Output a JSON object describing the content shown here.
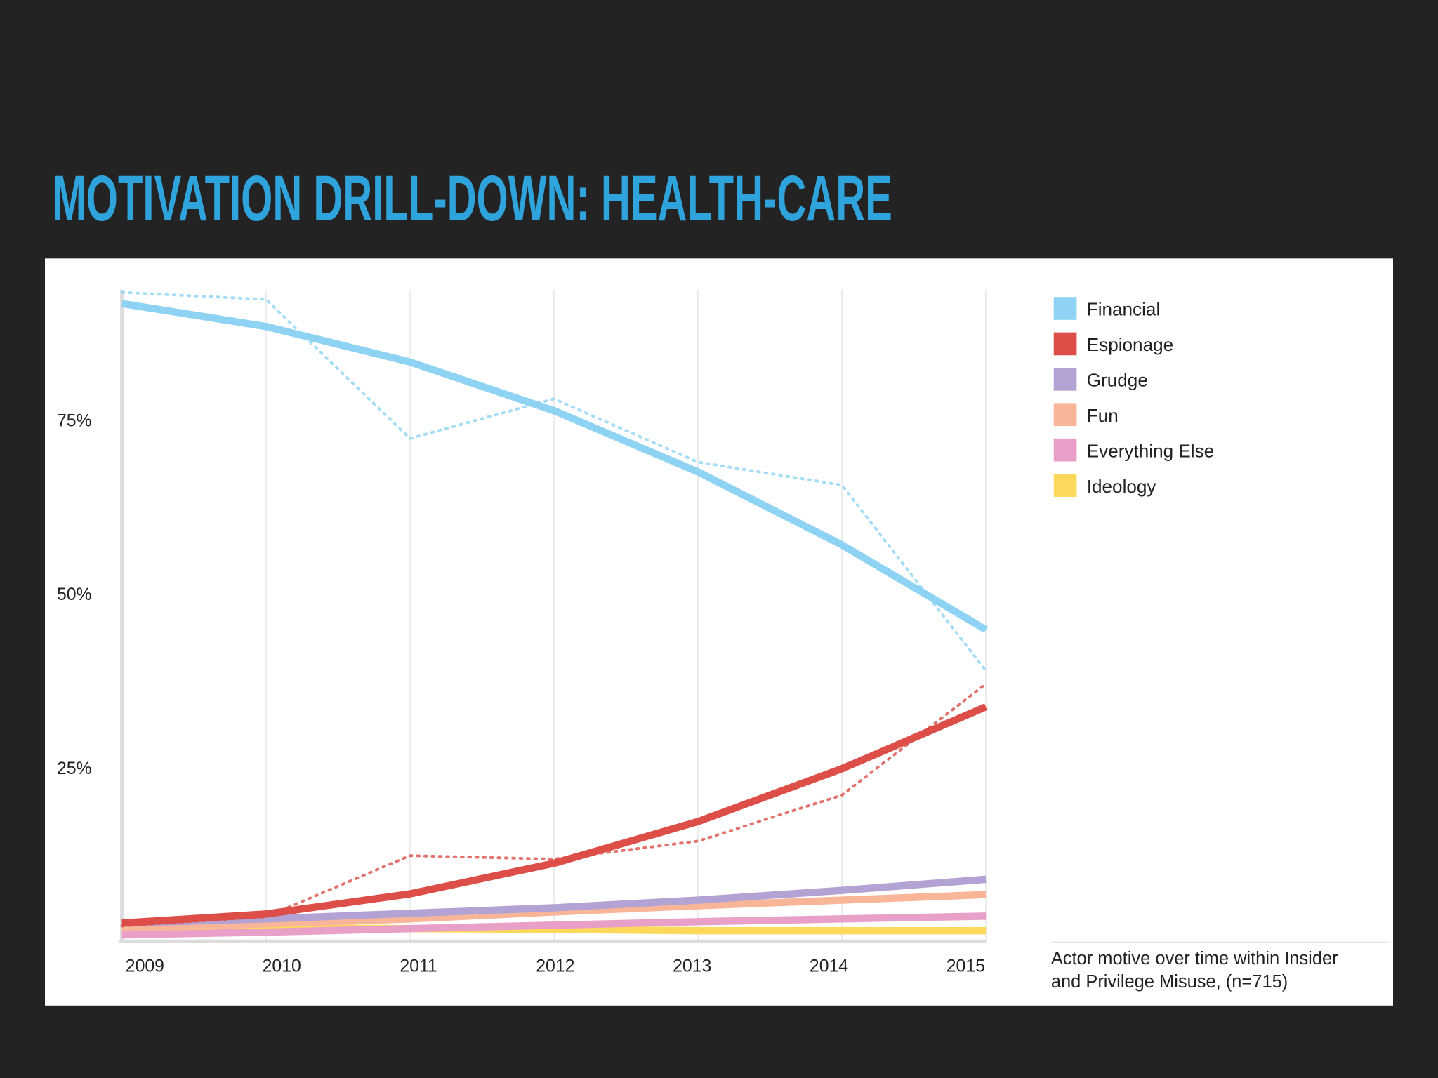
{
  "title": "MOTIVATION DRILL-DOWN: HEALTH-CARE",
  "chart_data": {
    "type": "line",
    "categories": [
      "2009",
      "2010",
      "2011",
      "2012",
      "2013",
      "2014",
      "2015"
    ],
    "ylim": [
      0,
      94
    ],
    "yticks": [
      {
        "value": 25,
        "label": "25%"
      },
      {
        "value": 50,
        "label": "50%"
      },
      {
        "value": 75,
        "label": "75%"
      }
    ],
    "grid": true,
    "legend": "right",
    "caption": [
      "Actor motive over time within Insider",
      "and Privilege Misuse, (n=715)"
    ],
    "series": [
      {
        "name": "Financial",
        "color": "#8fd3f4",
        "values": [
          92,
          88.7,
          83.6,
          76.6,
          67.8,
          57.3,
          45.1
        ],
        "raw": [
          93.6,
          92.6,
          72.6,
          78.3,
          69.2,
          65.9,
          39.2
        ]
      },
      {
        "name": "Espionage",
        "color": "#dc4e47",
        "values": [
          2.9,
          4.2,
          7.1,
          11.5,
          17.5,
          25.1,
          34
        ],
        "raw": [
          2.5,
          3.8,
          12.6,
          12.1,
          14.7,
          21.3,
          37.3
        ]
      },
      {
        "name": "Grudge",
        "color": "#b3a3d4",
        "values": [
          2.9,
          3.5,
          4.3,
          5.1,
          6.2,
          7.6,
          9.2
        ]
      },
      {
        "name": "Fun",
        "color": "#f9b597",
        "values": [
          2.2,
          2.8,
          3.5,
          4.5,
          5.4,
          6.2,
          7.0
        ]
      },
      {
        "name": "Everything Else",
        "color": "#e8a0c8",
        "values": [
          1.2,
          1.6,
          2.1,
          2.6,
          3.1,
          3.5,
          3.9
        ]
      },
      {
        "name": "Ideology",
        "color": "#fcd95a",
        "values": [
          2.2,
          2.2,
          2.1,
          2.0,
          1.8,
          1.8,
          1.8
        ]
      }
    ]
  }
}
